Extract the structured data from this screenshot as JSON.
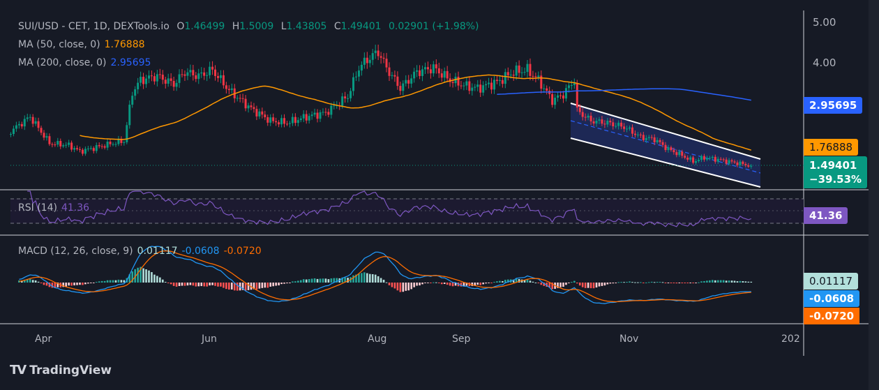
{
  "header": {
    "symbol": "SUI/USD - CET, 1D, DEXTools.io",
    "open_label": "O",
    "open": "1.46499",
    "high_label": "H",
    "high": "1.5009",
    "low_label": "L",
    "low": "1.43805",
    "close_label": "C",
    "close": "1.49401",
    "change": "0.02901 (+1.98%)"
  },
  "indicators": {
    "ma50_label": "MA (50, close, 0)",
    "ma50_value": "1.76888",
    "ma200_label": "MA (200, close, 0)",
    "ma200_value": "2.95695",
    "rsi_label": "RSI (14)",
    "rsi_value": "41.36",
    "macd_label": "MACD (12, 26, close, 9)",
    "macd_hist": "0.01117",
    "macd_line": "-0.0608",
    "macd_signal": "-0.0720"
  },
  "price_axis": {
    "ticks": [
      "5.00",
      "4.00"
    ],
    "tags": {
      "ma200": "2.95695",
      "ma50": "1.76888",
      "last": "1.49401",
      "last_change": "−39.53%",
      "rsi": "41.36",
      "macd_hist": "0.01117",
      "macd_line": "-0.0608",
      "macd_signal": "-0.0720"
    }
  },
  "time_axis": [
    "Apr",
    "Jun",
    "Aug",
    "Sep",
    "Nov",
    "202"
  ],
  "brand": "TradingView",
  "colors": {
    "up": "#089981",
    "down": "#f23645",
    "ma50": "#ff9800",
    "ma200": "#2962ff",
    "rsi": "#7e57c2",
    "macd": "#2196f3",
    "signal": "#ff6d00",
    "hist_up": "#b2dfdb",
    "hist_down": "#ffcdd2",
    "channel_fill": "#1f2b5e"
  },
  "chart_data": {
    "type": "candlestick",
    "y_scale": "linear",
    "ylim": [
      1.1,
      5.0
    ],
    "keypoint_closes": [
      [
        "2024-03-20",
        2.35
      ],
      [
        "2024-03-27",
        2.7
      ],
      [
        "2024-04-03",
        2.05
      ],
      [
        "2024-04-10",
        2.0
      ],
      [
        "2024-04-14",
        1.85
      ],
      [
        "2024-04-20",
        1.95
      ],
      [
        "2024-04-26",
        2.05
      ],
      [
        "2024-04-30",
        2.1
      ],
      [
        "2024-05-03",
        3.3
      ],
      [
        "2024-05-06",
        3.6
      ],
      [
        "2024-05-12",
        3.7
      ],
      [
        "2024-05-18",
        3.5
      ],
      [
        "2024-05-22",
        3.8
      ],
      [
        "2024-05-27",
        3.7
      ],
      [
        "2024-06-01",
        3.85
      ],
      [
        "2024-06-07",
        3.35
      ],
      [
        "2024-06-15",
        2.9
      ],
      [
        "2024-06-22",
        2.6
      ],
      [
        "2024-06-28",
        2.55
      ],
      [
        "2024-07-05",
        2.7
      ],
      [
        "2024-07-12",
        2.8
      ],
      [
        "2024-07-20",
        3.2
      ],
      [
        "2024-07-24",
        3.9
      ],
      [
        "2024-07-27",
        4.1
      ],
      [
        "2024-07-31",
        4.3
      ],
      [
        "2024-08-03",
        3.9
      ],
      [
        "2024-08-08",
        3.4
      ],
      [
        "2024-08-14",
        3.8
      ],
      [
        "2024-08-20",
        3.9
      ],
      [
        "2024-08-26",
        3.6
      ],
      [
        "2024-09-01",
        3.45
      ],
      [
        "2024-09-05",
        3.4
      ],
      [
        "2024-09-12",
        3.55
      ],
      [
        "2024-09-18",
        3.8
      ],
      [
        "2024-09-23",
        3.85
      ],
      [
        "2024-09-27",
        3.6
      ],
      [
        "2024-10-02",
        3.1
      ],
      [
        "2024-10-06",
        3.25
      ],
      [
        "2024-10-10",
        3.6
      ],
      [
        "2024-10-11",
        2.85
      ],
      [
        "2024-10-16",
        2.6
      ],
      [
        "2024-10-22",
        2.55
      ],
      [
        "2024-10-28",
        2.45
      ],
      [
        "2024-11-03",
        2.2
      ],
      [
        "2024-11-08",
        2.15
      ],
      [
        "2024-11-13",
        1.9
      ],
      [
        "2024-11-18",
        1.75
      ],
      [
        "2024-11-22",
        1.6
      ],
      [
        "2024-11-26",
        1.7
      ],
      [
        "2024-12-01",
        1.65
      ],
      [
        "2024-12-05",
        1.6
      ],
      [
        "2024-12-09",
        1.55
      ],
      [
        "2024-12-13",
        1.494
      ]
    ],
    "rsi_levels": [
      70,
      50,
      30
    ],
    "descending_channel": true
  }
}
